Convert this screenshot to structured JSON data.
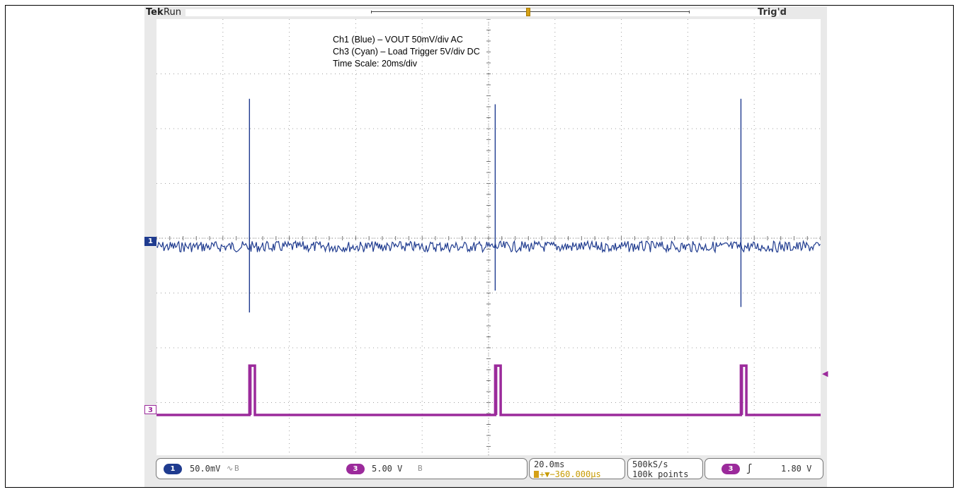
{
  "status": {
    "brand": "Tek",
    "run_state": "Run",
    "trigger_state": "Trig'd"
  },
  "annotation": {
    "line1": "Ch1 (Blue) – VOUT 50mV/div AC",
    "line2": "Ch3 (Cyan) – Load Trigger 5V/div DC",
    "line3": "Time Scale: 20ms/div"
  },
  "markers": {
    "ch1": "1",
    "ch3": "3"
  },
  "readouts": {
    "ch1_scale": "50.0mV",
    "ch1_coupling_icon": "∿",
    "ch1_bw_icon": "B",
    "ch3_scale": "5.00 V",
    "ch3_bw_icon": "B",
    "timebase": "20.0ms",
    "trigger_offset": "+▼−360.000µs",
    "sample_rate": "500kS/s",
    "record_length": "100k points",
    "trigger_source": "3",
    "trigger_slope": "ʃ",
    "trigger_level": "1.80 V"
  },
  "colors": {
    "ch1": "#1f3b8f",
    "ch3": "#9b2a9b",
    "grid": "#a0a0a0",
    "trigger_marker": "#d4a017"
  },
  "chart_data": {
    "type": "line",
    "title": "",
    "xlabel": "",
    "ylabel": "",
    "grid": true,
    "x_divisions": 10,
    "y_divisions": 8,
    "x_unit_per_div": "20ms",
    "xlim_ms": [
      -100,
      100
    ],
    "series": [
      {
        "name": "Ch1 (Blue) – VOUT 50mV/div AC",
        "channel": 1,
        "units": "mV",
        "volts_per_div_mV": 50,
        "baseline_mV": 0,
        "noise_pp_mV": 10,
        "spikes": [
          {
            "t_ms": -72,
            "peak_mV": 135,
            "trough_mV": -60
          },
          {
            "t_ms": 2,
            "peak_mV": 130,
            "trough_mV": -40
          },
          {
            "t_ms": 76,
            "peak_mV": 135,
            "trough_mV": -55
          }
        ]
      },
      {
        "name": "Ch3 (Cyan) – Load Trigger 5V/div DC",
        "channel": 3,
        "units": "V",
        "volts_per_div_V": 5,
        "low_V": 0,
        "high_V": 4.5,
        "pulses": [
          {
            "t_start_ms": -72,
            "t_end_ms": -71
          },
          {
            "t_start_ms": 2,
            "t_end_ms": 3
          },
          {
            "t_start_ms": 76,
            "t_end_ms": 77
          }
        ]
      }
    ]
  }
}
